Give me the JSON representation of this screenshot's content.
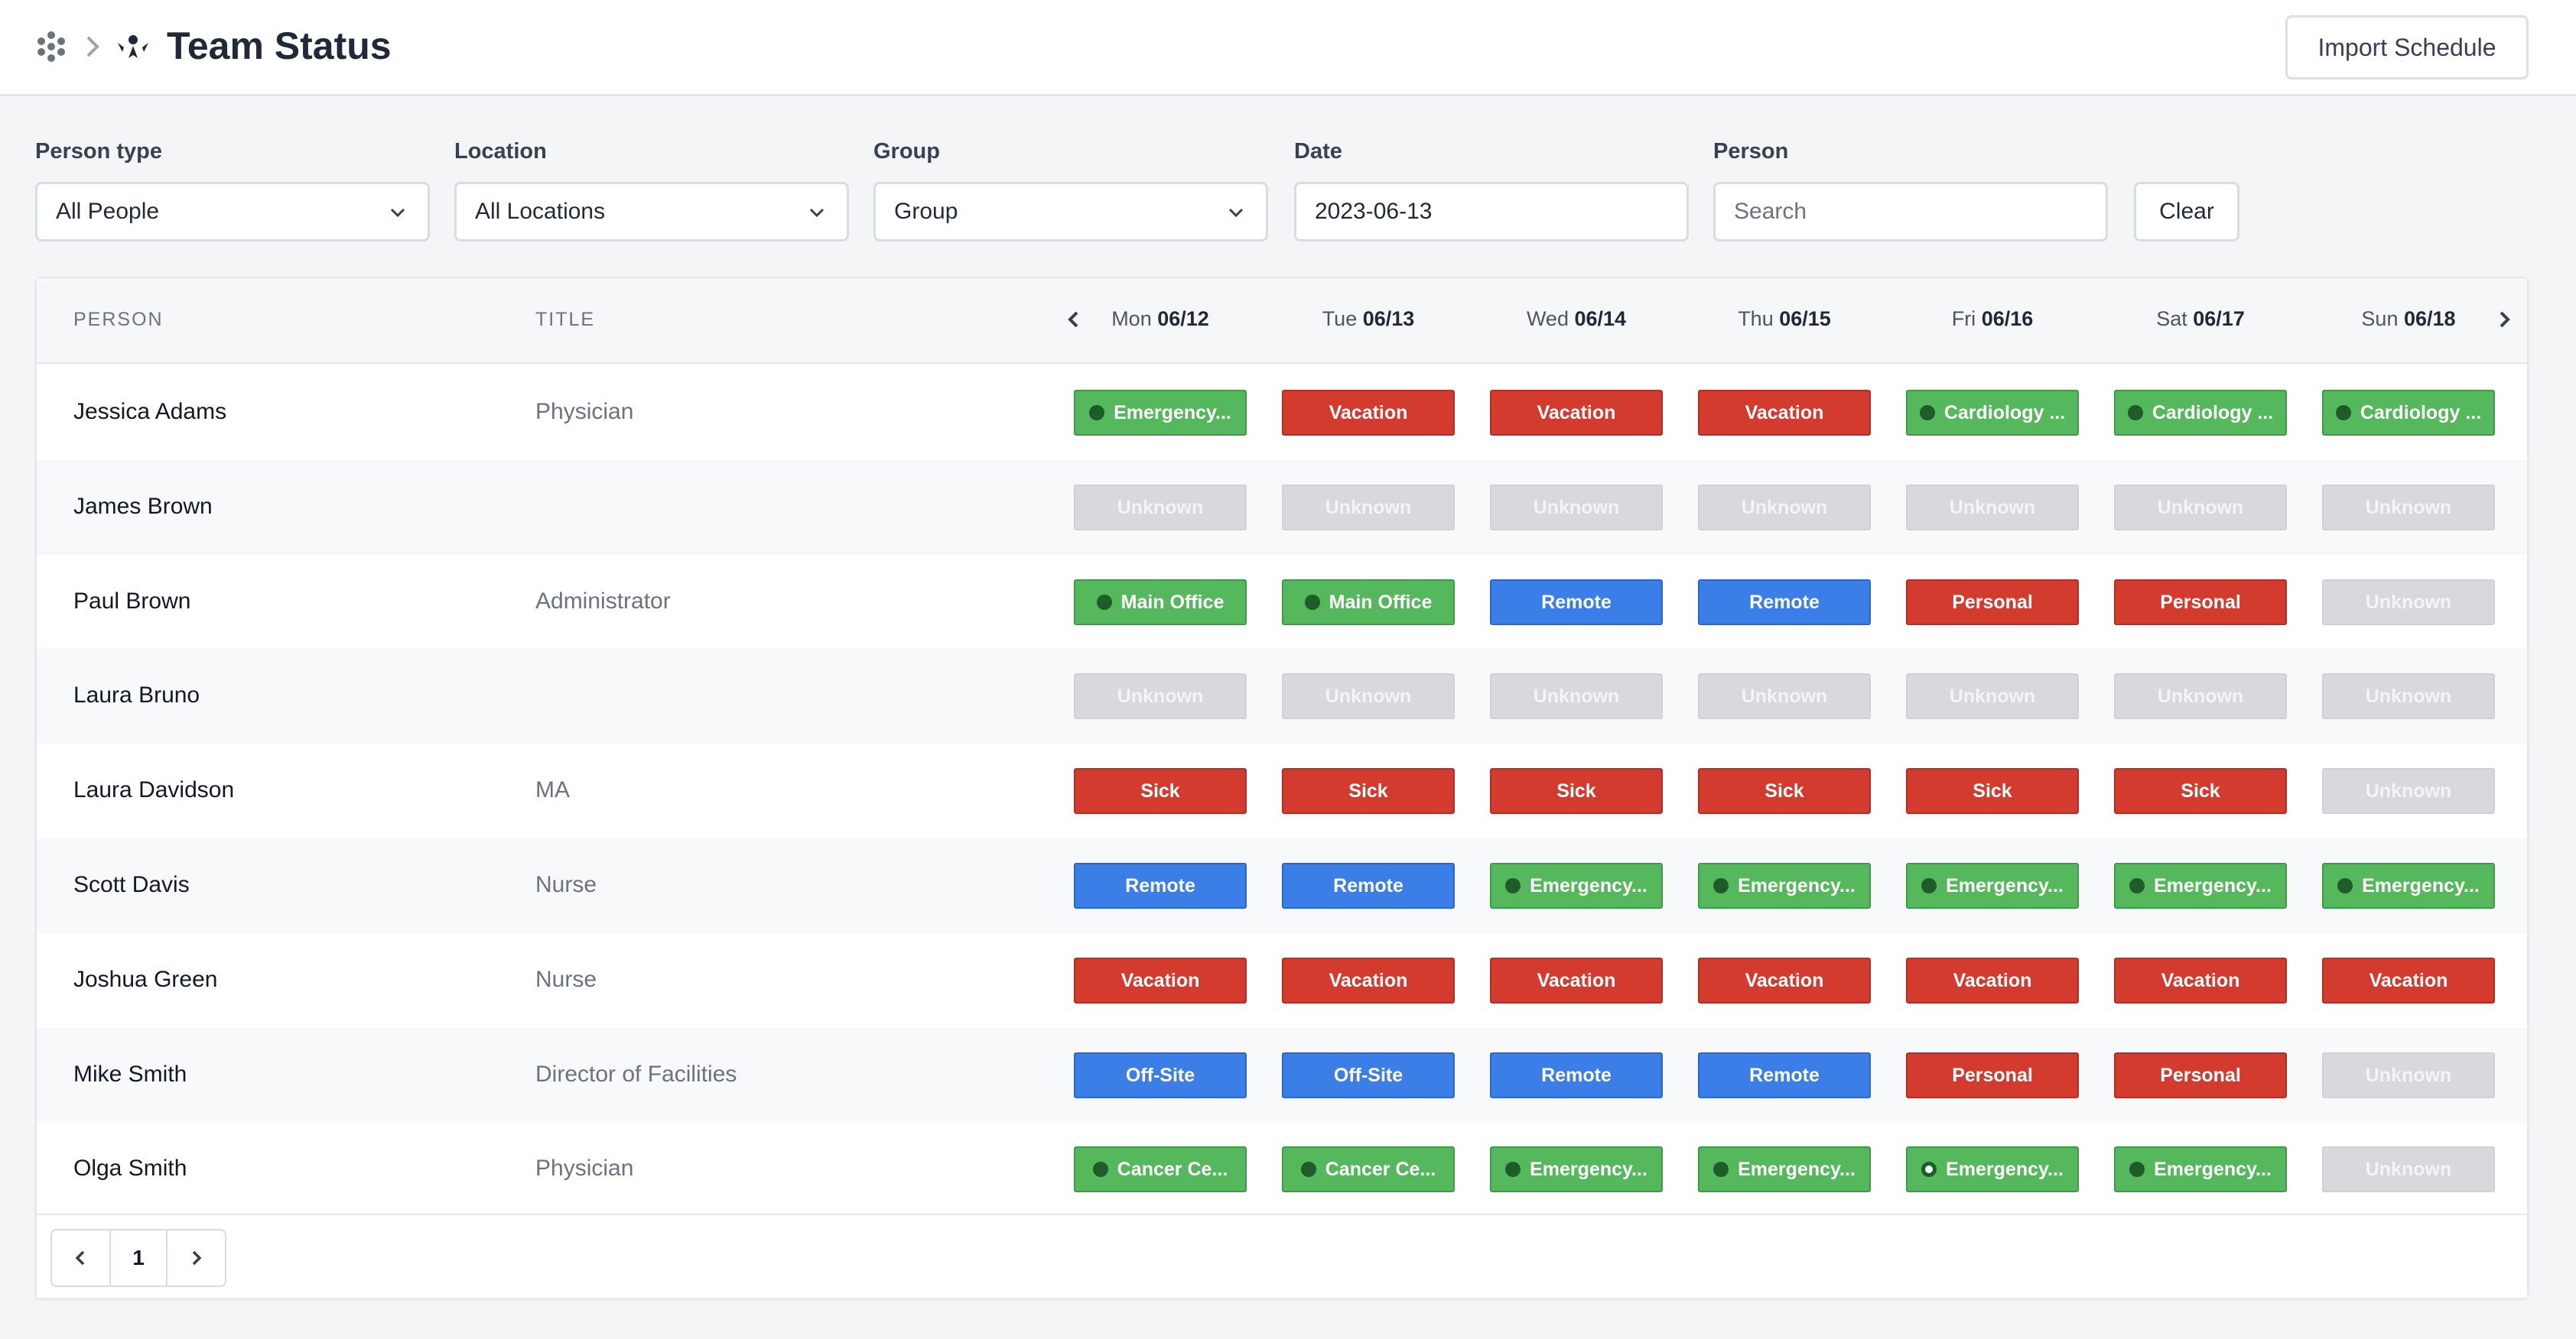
{
  "header": {
    "title": "Team Status",
    "import_label": "Import Schedule"
  },
  "filters": {
    "person_type": {
      "label": "Person type",
      "value": "All People"
    },
    "location": {
      "label": "Location",
      "value": "All Locations"
    },
    "group": {
      "label": "Group",
      "value": "Group"
    },
    "date": {
      "label": "Date",
      "value": "2023-06-13"
    },
    "person": {
      "label": "Person",
      "placeholder": "Search"
    },
    "clear_label": "Clear"
  },
  "table": {
    "col_person": "PERSON",
    "col_title": "TITLE",
    "days": [
      {
        "dow": "Mon",
        "date": "06/12"
      },
      {
        "dow": "Tue",
        "date": "06/13"
      },
      {
        "dow": "Wed",
        "date": "06/14"
      },
      {
        "dow": "Thu",
        "date": "06/15"
      },
      {
        "dow": "Fri",
        "date": "06/16"
      },
      {
        "dow": "Sat",
        "date": "06/17"
      },
      {
        "dow": "Sun",
        "date": "06/18"
      }
    ],
    "rows": [
      {
        "name": "Jessica Adams",
        "title": "Physician",
        "cells": [
          {
            "text": "Emergency...",
            "color": "green",
            "dot": "solid"
          },
          {
            "text": "Vacation",
            "color": "red"
          },
          {
            "text": "Vacation",
            "color": "red"
          },
          {
            "text": "Vacation",
            "color": "red"
          },
          {
            "text": "Cardiology ...",
            "color": "green",
            "dot": "solid"
          },
          {
            "text": "Cardiology ...",
            "color": "green",
            "dot": "solid"
          },
          {
            "text": "Cardiology ...",
            "color": "green",
            "dot": "solid"
          }
        ]
      },
      {
        "name": "James Brown",
        "title": "",
        "cells": [
          {
            "text": "Unknown",
            "color": "gray"
          },
          {
            "text": "Unknown",
            "color": "gray"
          },
          {
            "text": "Unknown",
            "color": "gray"
          },
          {
            "text": "Unknown",
            "color": "gray"
          },
          {
            "text": "Unknown",
            "color": "gray"
          },
          {
            "text": "Unknown",
            "color": "gray"
          },
          {
            "text": "Unknown",
            "color": "gray"
          }
        ]
      },
      {
        "name": "Paul Brown",
        "title": "Administrator",
        "cells": [
          {
            "text": "Main Office",
            "color": "green",
            "dot": "solid"
          },
          {
            "text": "Main Office",
            "color": "green",
            "dot": "solid"
          },
          {
            "text": "Remote",
            "color": "blue"
          },
          {
            "text": "Remote",
            "color": "blue"
          },
          {
            "text": "Personal",
            "color": "red"
          },
          {
            "text": "Personal",
            "color": "red"
          },
          {
            "text": "Unknown",
            "color": "gray"
          }
        ]
      },
      {
        "name": "Laura Bruno",
        "title": "",
        "cells": [
          {
            "text": "Unknown",
            "color": "gray"
          },
          {
            "text": "Unknown",
            "color": "gray"
          },
          {
            "text": "Unknown",
            "color": "gray"
          },
          {
            "text": "Unknown",
            "color": "gray"
          },
          {
            "text": "Unknown",
            "color": "gray"
          },
          {
            "text": "Unknown",
            "color": "gray"
          },
          {
            "text": "Unknown",
            "color": "gray"
          }
        ]
      },
      {
        "name": "Laura Davidson",
        "title": "MA",
        "cells": [
          {
            "text": "Sick",
            "color": "red"
          },
          {
            "text": "Sick",
            "color": "red"
          },
          {
            "text": "Sick",
            "color": "red"
          },
          {
            "text": "Sick",
            "color": "red"
          },
          {
            "text": "Sick",
            "color": "red"
          },
          {
            "text": "Sick",
            "color": "red"
          },
          {
            "text": "Unknown",
            "color": "gray"
          }
        ]
      },
      {
        "name": "Scott Davis",
        "title": "Nurse",
        "cells": [
          {
            "text": "Remote",
            "color": "blue"
          },
          {
            "text": "Remote",
            "color": "blue"
          },
          {
            "text": "Emergency...",
            "color": "green",
            "dot": "solid"
          },
          {
            "text": "Emergency...",
            "color": "green",
            "dot": "solid"
          },
          {
            "text": "Emergency...",
            "color": "green",
            "dot": "solid"
          },
          {
            "text": "Emergency...",
            "color": "green",
            "dot": "solid"
          },
          {
            "text": "Emergency...",
            "color": "green",
            "dot": "solid"
          }
        ]
      },
      {
        "name": "Joshua Green",
        "title": "Nurse",
        "cells": [
          {
            "text": "Vacation",
            "color": "red"
          },
          {
            "text": "Vacation",
            "color": "red"
          },
          {
            "text": "Vacation",
            "color": "red"
          },
          {
            "text": "Vacation",
            "color": "red"
          },
          {
            "text": "Vacation",
            "color": "red"
          },
          {
            "text": "Vacation",
            "color": "red"
          },
          {
            "text": "Vacation",
            "color": "red"
          }
        ]
      },
      {
        "name": "Mike Smith",
        "title": "Director of Facilities",
        "cells": [
          {
            "text": "Off-Site",
            "color": "blue"
          },
          {
            "text": "Off-Site",
            "color": "blue"
          },
          {
            "text": "Remote",
            "color": "blue"
          },
          {
            "text": "Remote",
            "color": "blue"
          },
          {
            "text": "Personal",
            "color": "red"
          },
          {
            "text": "Personal",
            "color": "red"
          },
          {
            "text": "Unknown",
            "color": "gray"
          }
        ]
      },
      {
        "name": "Olga Smith",
        "title": "Physician",
        "cells": [
          {
            "text": "Cancer Ce...",
            "color": "green",
            "dot": "solid"
          },
          {
            "text": "Cancer Ce...",
            "color": "green",
            "dot": "solid"
          },
          {
            "text": "Emergency...",
            "color": "green",
            "dot": "solid"
          },
          {
            "text": "Emergency...",
            "color": "green",
            "dot": "solid"
          },
          {
            "text": "Emergency...",
            "color": "green",
            "dot": "ring"
          },
          {
            "text": "Emergency...",
            "color": "green",
            "dot": "solid"
          },
          {
            "text": "Unknown",
            "color": "gray"
          }
        ]
      }
    ]
  },
  "pagination": {
    "current_page": "1"
  },
  "icons": {
    "app": "apps-dots-icon",
    "breadcrumb_separator": "chevron-right-icon",
    "team": "team-status-icon",
    "dropdown": "chevron-down-icon",
    "prev": "chevron-left-icon",
    "next": "chevron-right-icon"
  },
  "colors": {
    "green": "#55b85c",
    "red": "#d43b2f",
    "blue": "#3b7ee8",
    "gray": "#d7d9dc"
  }
}
